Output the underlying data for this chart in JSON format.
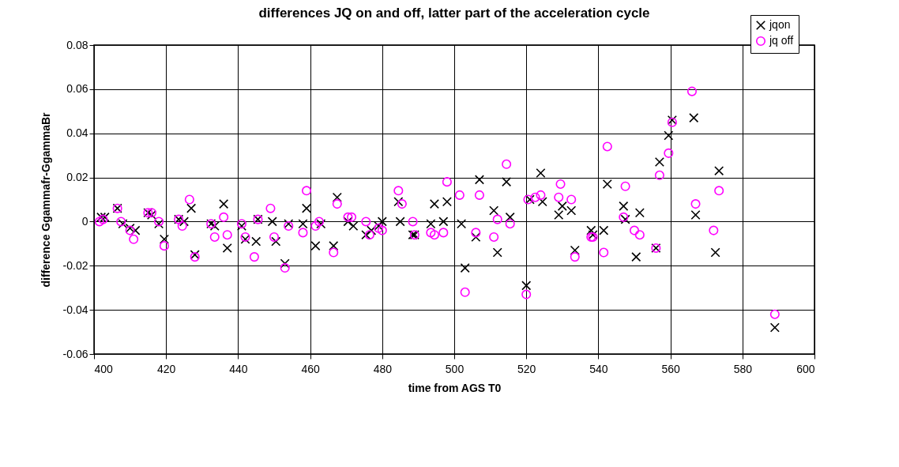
{
  "chart_data": {
    "type": "scatter",
    "title": "differences JQ on and off, latter part of the acceleration cycle",
    "xlabel": "time from AGS T0",
    "ylabel": "difference Ggammafr-GgammaBr",
    "xlim": [
      400,
      600
    ],
    "xticks": [
      400,
      420,
      440,
      460,
      480,
      500,
      520,
      540,
      560,
      580,
      600
    ],
    "ylim": [
      -0.06,
      0.08
    ],
    "yticks": [
      -0.06,
      -0.04,
      -0.02,
      0,
      0.02,
      0.04,
      0.06,
      0.08
    ],
    "grid": true,
    "legend": "top right",
    "series": [
      {
        "name": "jqon",
        "color": "#000000",
        "marker": "cross",
        "x": [
          402,
          403,
          406.5,
          408,
          410,
          411.5,
          415,
          416,
          418,
          419.5,
          423.5,
          425,
          427,
          428,
          432.5,
          433.5,
          436,
          437,
          441,
          442,
          445,
          445.5,
          449.5,
          450.5,
          453,
          454,
          458,
          459,
          461.5,
          463,
          466.5,
          467.5,
          470.5,
          472,
          475.5,
          477,
          479,
          480,
          484.5,
          485,
          488.5,
          489,
          493.5,
          494.5,
          497,
          498,
          502,
          503,
          506,
          507,
          511,
          512,
          514.5,
          515.5,
          520,
          521,
          524,
          524.5,
          529,
          530,
          532.5,
          533.5,
          538,
          538.5,
          541.5,
          542.5,
          547,
          547.5,
          550.5,
          551.5,
          556,
          557,
          559.5,
          560.5,
          566.5,
          567,
          572.5,
          573.5,
          589
        ],
        "values": [
          0.002,
          0.002,
          0.006,
          -0.001,
          -0.003,
          -0.004,
          0.004,
          0.003,
          -0.001,
          -0.008,
          0.001,
          0,
          0.006,
          -0.015,
          -0.001,
          -0.002,
          0.008,
          -0.012,
          -0.002,
          -0.008,
          -0.009,
          0.001,
          0,
          -0.009,
          -0.019,
          -0.001,
          -0.001,
          0.006,
          -0.011,
          -0.001,
          -0.011,
          0.011,
          0,
          -0.002,
          -0.006,
          -0.004,
          -0.002,
          0,
          0.009,
          0,
          -0.006,
          -0.006,
          -0.001,
          0.008,
          0,
          0.009,
          -0.001,
          -0.021,
          -0.007,
          0.019,
          0.005,
          -0.014,
          0.018,
          0.002,
          -0.029,
          0.01,
          0.022,
          0.009,
          0.003,
          0.007,
          0.005,
          -0.013,
          -0.004,
          -0.006,
          -0.004,
          0.017,
          0.007,
          0.001,
          -0.016,
          0.004,
          -0.012,
          0.027,
          0.039,
          0.046,
          0.047,
          0.003,
          -0.014,
          0.023,
          -0.048
        ]
      },
      {
        "name": "jq off",
        "color": "#ff00ff",
        "marker": "circle",
        "x": [
          401.5,
          402.5,
          406.5,
          407.5,
          410,
          411,
          415,
          416,
          418,
          419.5,
          423.5,
          424.5,
          426.5,
          428,
          432.5,
          433.5,
          436,
          437,
          441,
          442,
          444.5,
          445.5,
          449,
          450,
          453,
          454,
          458,
          459,
          461.5,
          462.5,
          466.5,
          467.5,
          470.5,
          471.5,
          475.5,
          476.5,
          479,
          480,
          484.5,
          485.5,
          488.5,
          489,
          493.5,
          494.5,
          497,
          498,
          501.5,
          503,
          506,
          507,
          511,
          512,
          514.5,
          515.5,
          520,
          520.5,
          522.5,
          524,
          529,
          529.5,
          532.5,
          533.5,
          538,
          538.5,
          541.5,
          542.5,
          547,
          547.5,
          550,
          551.5,
          556,
          557,
          559.5,
          560.5,
          566,
          567,
          572,
          573.5,
          589
        ],
        "values": [
          0,
          0.001,
          0.006,
          0,
          -0.004,
          -0.008,
          0.004,
          0.004,
          0,
          -0.011,
          0.001,
          -0.002,
          0.01,
          -0.016,
          -0.001,
          -0.007,
          0.002,
          -0.006,
          -0.001,
          -0.007,
          -0.016,
          0.001,
          0.006,
          -0.007,
          -0.021,
          -0.002,
          -0.005,
          0.014,
          -0.002,
          0,
          -0.014,
          0.008,
          0.002,
          0.002,
          0,
          -0.006,
          -0.003,
          -0.004,
          0.014,
          0.008,
          0,
          -0.006,
          -0.005,
          -0.006,
          -0.005,
          0.018,
          0.012,
          -0.032,
          -0.005,
          0.012,
          -0.007,
          0.001,
          0.026,
          -0.001,
          -0.033,
          0.01,
          0.011,
          0.012,
          0.011,
          0.017,
          0.01,
          -0.016,
          -0.007,
          -0.007,
          -0.014,
          0.034,
          0.002,
          0.016,
          -0.004,
          -0.006,
          -0.012,
          0.021,
          0.031,
          0.045,
          0.059,
          0.008,
          -0.004,
          0.014,
          -0.042
        ]
      }
    ]
  }
}
